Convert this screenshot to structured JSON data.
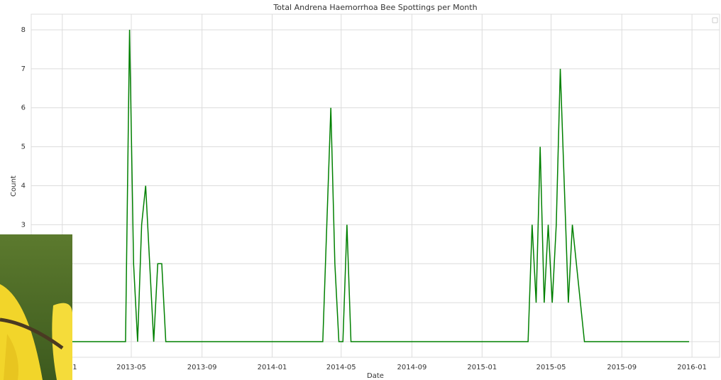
{
  "chart_data": {
    "type": "line",
    "title": "Total Andrena Haemorrhoa Bee Spottings per Month",
    "x_label": "Date",
    "y_label": "Count",
    "x": [
      "2013-01-06",
      "2013-04-21",
      "2013-04-28",
      "2013-05-05",
      "2013-05-12",
      "2013-05-19",
      "2013-05-26",
      "2013-06-02",
      "2013-06-09",
      "2013-06-16",
      "2013-06-23",
      "2013-06-30",
      "2014-03-30",
      "2014-04-06",
      "2014-04-13",
      "2014-04-20",
      "2014-04-27",
      "2014-05-04",
      "2014-05-11",
      "2014-05-18",
      "2015-03-22",
      "2015-03-29",
      "2015-04-05",
      "2015-04-12",
      "2015-04-19",
      "2015-04-26",
      "2015-05-03",
      "2015-05-10",
      "2015-05-17",
      "2015-05-24",
      "2015-05-31",
      "2015-06-07",
      "2015-06-14",
      "2015-06-21",
      "2015-06-28",
      "2015-12-27"
    ],
    "series": [
      {
        "color": "#008000",
        "values": [
          0,
          0,
          8,
          2,
          0,
          3,
          4,
          2,
          0,
          2,
          2,
          0,
          0,
          3,
          6,
          2,
          0,
          0,
          3,
          0,
          0,
          3,
          1,
          5,
          1,
          3,
          1,
          3,
          7,
          4,
          1,
          3,
          2,
          1,
          0,
          0
        ]
      }
    ],
    "xlim": [
      "2012-11-08",
      "2016-02-18"
    ],
    "xticks": [
      "2013-01",
      "2013-05",
      "2013-09",
      "2014-01",
      "2014-05",
      "2014-09",
      "2015-01",
      "2015-05",
      "2015-09",
      "2016-01"
    ],
    "ylim": [
      -0.4,
      8.4
    ],
    "yticks": [
      0,
      1,
      2,
      3,
      4,
      5,
      6,
      7,
      8
    ],
    "grid": true
  }
}
